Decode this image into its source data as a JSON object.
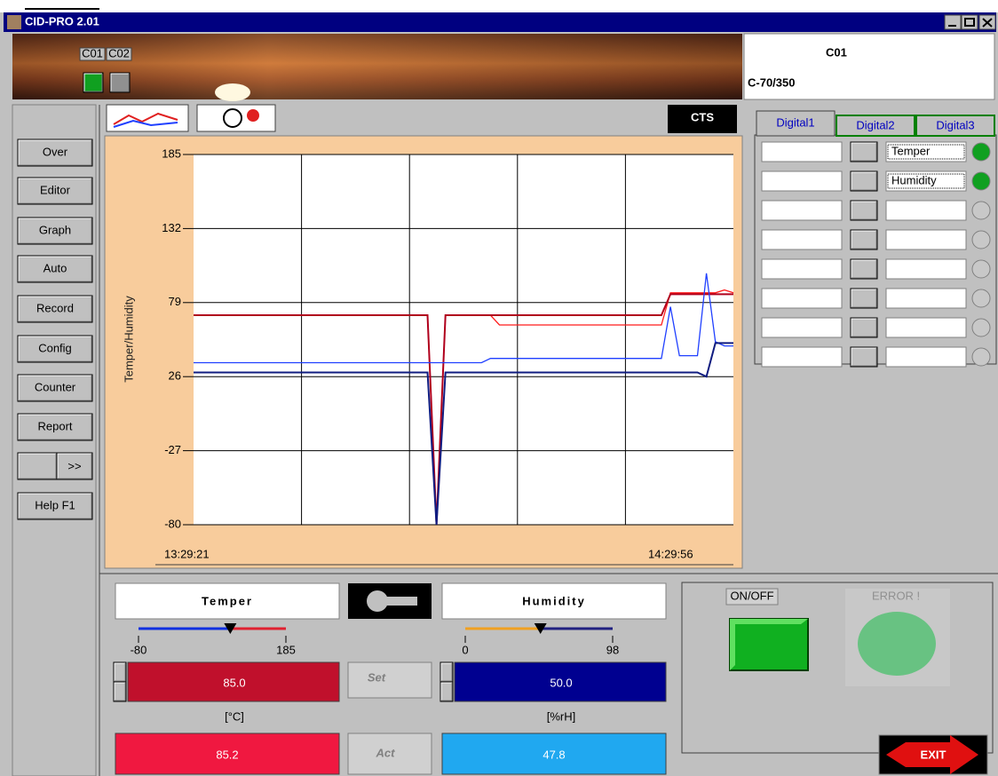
{
  "window": {
    "title": "CID-PRO 2.01"
  },
  "chambers": [
    "C01",
    "C02"
  ],
  "device": {
    "id": "C01",
    "model": "C-70/350"
  },
  "menu": [
    "Over",
    "Editor",
    "Graph",
    "Auto",
    "Record",
    "Config",
    "Counter",
    "Report"
  ],
  "more": ">>",
  "help": "Help F1",
  "logo": "CTS",
  "chart_data": {
    "type": "line",
    "ylabel": "Temper/Humidity",
    "ylim": [
      -80,
      185
    ],
    "yticks": [
      185,
      132,
      79,
      26,
      -27,
      -80
    ],
    "grid": true,
    "x_labels": [
      "13:29:21",
      "14:29:56"
    ],
    "series": [
      {
        "color": "#ff1c1c",
        "values": [
          70,
          70,
          70,
          70,
          70,
          70,
          70,
          70,
          70,
          70,
          70,
          70,
          70,
          70,
          70,
          70,
          70,
          70,
          70,
          70,
          70,
          70,
          70,
          70,
          70,
          70,
          70,
          -80,
          70,
          70,
          70,
          70,
          70,
          70,
          63,
          63,
          63,
          63,
          63,
          63,
          63,
          63,
          63,
          63,
          63,
          63,
          63,
          63,
          63,
          63,
          63,
          63,
          63,
          86,
          86,
          86,
          86,
          86,
          86,
          88,
          86
        ]
      },
      {
        "color": "#b0001c",
        "values": [
          70,
          70,
          70,
          70,
          70,
          70,
          70,
          70,
          70,
          70,
          70,
          70,
          70,
          70,
          70,
          70,
          70,
          70,
          70,
          70,
          70,
          70,
          70,
          70,
          70,
          70,
          70,
          -80,
          70,
          70,
          70,
          70,
          70,
          70,
          70,
          70,
          70,
          70,
          70,
          70,
          70,
          70,
          70,
          70,
          70,
          70,
          70,
          70,
          70,
          70,
          70,
          70,
          70,
          85,
          85,
          85,
          85,
          85,
          85,
          85,
          85
        ]
      },
      {
        "color": "#2040ff",
        "values": [
          36,
          36,
          36,
          36,
          36,
          36,
          36,
          36,
          36,
          36,
          36,
          36,
          36,
          36,
          36,
          36,
          36,
          36,
          36,
          36,
          36,
          36,
          36,
          36,
          36,
          36,
          36,
          36,
          36,
          36,
          36,
          36,
          36,
          39,
          39,
          39,
          39,
          39,
          39,
          39,
          39,
          39,
          39,
          39,
          39,
          39,
          39,
          39,
          39,
          39,
          39,
          39,
          39,
          76,
          41,
          41,
          41,
          100,
          51,
          48,
          48
        ]
      },
      {
        "color": "#101c80",
        "values": [
          29,
          29,
          29,
          29,
          29,
          29,
          29,
          29,
          29,
          29,
          29,
          29,
          29,
          29,
          29,
          29,
          29,
          29,
          29,
          29,
          29,
          29,
          29,
          29,
          29,
          29,
          29,
          -80,
          29,
          29,
          29,
          29,
          29,
          29,
          29,
          29,
          29,
          29,
          29,
          29,
          29,
          29,
          29,
          29,
          29,
          29,
          29,
          29,
          29,
          29,
          29,
          29,
          29,
          29,
          29,
          29,
          29,
          26,
          50,
          50,
          50
        ]
      }
    ]
  },
  "tabs": [
    "Digital1",
    "Digital2",
    "Digital3"
  ],
  "digital": {
    "labels": [
      "Temper",
      "Humidity"
    ]
  },
  "temper": {
    "label": "Temper",
    "min": -80,
    "max": 185,
    "set": "85.0",
    "unit": "[°C]",
    "act": "85.2"
  },
  "humidity": {
    "label": "Humidity",
    "min": 0,
    "max": 98,
    "set": "50.0",
    "unit": "[%rH]",
    "act": "47.8"
  },
  "set_label": "Set",
  "act_label": "Act",
  "onoff": "ON/OFF",
  "error": "ERROR !",
  "exit": "EXIT"
}
